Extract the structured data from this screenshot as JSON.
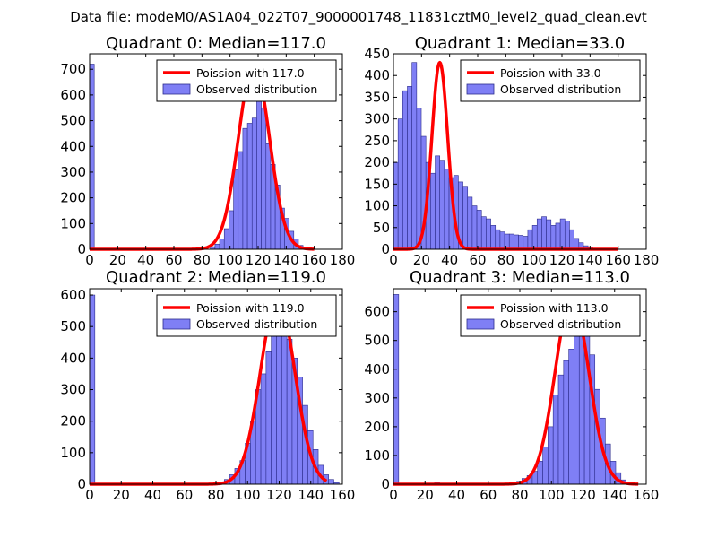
{
  "figure": {
    "title": "Data file: modeM0/AS1A04_022T07_9000001748_11831cztM0_level2_quad_clean.evt",
    "colors": {
      "bar_fill": "#7f7ff5",
      "bar_edge": "#2c2c8c",
      "curve": "#ff0000"
    }
  },
  "chart_data": [
    {
      "type": "bar",
      "title": "Quadrant 0: Median=117.0",
      "legend": [
        "Poission with 117.0",
        "Observed distribution"
      ],
      "legend_location": "top-right",
      "xlim": [
        0,
        180
      ],
      "ylim": [
        0,
        760
      ],
      "xticks": [
        0,
        20,
        40,
        60,
        80,
        100,
        120,
        140,
        160,
        180
      ],
      "yticks": [
        0,
        100,
        200,
        300,
        400,
        500,
        600,
        700
      ],
      "bin_width": 3.3,
      "bin_starts": [
        0,
        86,
        89.3,
        92.6,
        95.9,
        99.2,
        102.5,
        105.8,
        109.1,
        112.4,
        115.7,
        119,
        122.3,
        125.6,
        128.9,
        132.2,
        135.5,
        138.8,
        142.1,
        145.4,
        148.7
      ],
      "counts": [
        720,
        10,
        20,
        40,
        80,
        150,
        310,
        380,
        470,
        490,
        510,
        670,
        550,
        410,
        330,
        250,
        160,
        120,
        70,
        40,
        15
      ],
      "fit_mean": 117.0,
      "fit_peak": 720,
      "fit_sigma": 11.0,
      "fit_range": [
        0,
        160
      ]
    },
    {
      "type": "bar",
      "title": "Quadrant 1: Median=33.0",
      "legend": [
        "Poission with 33.0",
        "Observed distribution"
      ],
      "legend_location": "top-right",
      "xlim": [
        0,
        180
      ],
      "ylim": [
        0,
        450
      ],
      "xticks": [
        0,
        20,
        40,
        60,
        80,
        100,
        120,
        140,
        160,
        180
      ],
      "yticks": [
        0,
        50,
        100,
        150,
        200,
        250,
        300,
        350,
        400,
        450
      ],
      "bin_width": 3.3,
      "bin_starts": [
        0,
        3.3,
        6.6,
        9.9,
        13.2,
        16.5,
        19.8,
        23.1,
        26.4,
        29.7,
        33,
        36.3,
        39.6,
        42.9,
        46.2,
        49.5,
        52.8,
        56.1,
        59.4,
        62.7,
        66,
        69.3,
        72.6,
        75.9,
        79.2,
        82.5,
        85.8,
        89.1,
        92.4,
        95.7,
        99,
        102.3,
        105.6,
        108.9,
        112.2,
        115.5,
        118.8,
        122.1,
        125.4,
        128.7,
        132,
        135.3,
        138.6,
        141.9
      ],
      "counts": [
        200,
        300,
        365,
        375,
        430,
        325,
        260,
        200,
        175,
        215,
        205,
        185,
        165,
        170,
        155,
        145,
        120,
        100,
        90,
        75,
        70,
        55,
        45,
        40,
        35,
        35,
        33,
        32,
        30,
        45,
        55,
        70,
        75,
        68,
        55,
        60,
        70,
        65,
        45,
        25,
        15,
        8,
        5,
        2
      ],
      "fit_mean": 33.0,
      "fit_peak": 430,
      "fit_sigma": 5.6,
      "fit_range": [
        0,
        160
      ]
    },
    {
      "type": "bar",
      "title": "Quadrant 2: Median=119.0",
      "legend": [
        "Poission with 119.0",
        "Observed distribution"
      ],
      "legend_location": "top-right",
      "xlim": [
        0,
        160
      ],
      "ylim": [
        0,
        620
      ],
      "xticks": [
        0,
        20,
        40,
        60,
        80,
        100,
        120,
        140,
        160
      ],
      "yticks": [
        0,
        100,
        200,
        300,
        400,
        500,
        600
      ],
      "bin_width": 3.3,
      "bin_starts": [
        0,
        82,
        85.3,
        88.6,
        91.9,
        95.2,
        98.5,
        101.8,
        105.1,
        108.4,
        111.7,
        115,
        118.3,
        121.6,
        124.9,
        128.2,
        131.5,
        134.8,
        138.1,
        141.4,
        144.7,
        148,
        151.3,
        154.6
      ],
      "counts": [
        600,
        5,
        15,
        30,
        50,
        75,
        130,
        200,
        300,
        350,
        420,
        480,
        580,
        520,
        460,
        400,
        340,
        250,
        170,
        110,
        60,
        30,
        15,
        5
      ],
      "fit_mean": 119.0,
      "fit_peak": 590,
      "fit_sigma": 10.9,
      "fit_range": [
        0,
        150
      ]
    },
    {
      "type": "bar",
      "title": "Quadrant 3: Median=113.0",
      "legend": [
        "Poission with 113.0",
        "Observed distribution"
      ],
      "legend_location": "top-right",
      "xlim": [
        0,
        160
      ],
      "ylim": [
        0,
        680
      ],
      "xticks": [
        0,
        20,
        40,
        60,
        80,
        100,
        120,
        140,
        160
      ],
      "yticks": [
        0,
        100,
        200,
        300,
        400,
        500,
        600
      ],
      "bin_width": 3.3,
      "bin_starts": [
        0,
        26,
        78,
        81.3,
        84.6,
        87.9,
        91.2,
        94.5,
        97.8,
        101.1,
        104.4,
        107.7,
        111,
        114.3,
        117.6,
        120.9,
        124.2,
        127.5,
        130.8,
        134.1,
        137.4,
        140.7,
        144,
        147.3
      ],
      "counts": [
        660,
        5,
        10,
        20,
        30,
        45,
        80,
        130,
        200,
        310,
        380,
        430,
        470,
        520,
        650,
        560,
        450,
        330,
        230,
        140,
        80,
        40,
        15,
        5
      ],
      "fit_mean": 113.0,
      "fit_peak": 650,
      "fit_sigma": 10.6,
      "fit_range": [
        0,
        155
      ]
    }
  ]
}
